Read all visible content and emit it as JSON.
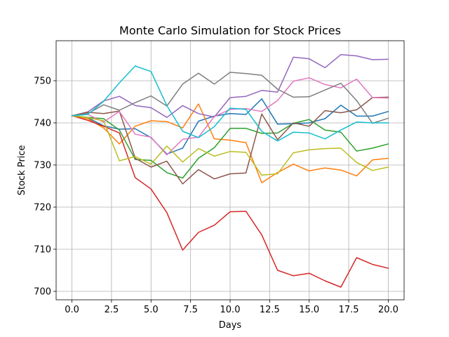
{
  "chart_data": {
    "type": "line",
    "title": "Monte Carlo Simulation for Stock Prices",
    "xlabel": "Days",
    "ylabel": "Stock Price",
    "xlim": [
      -1,
      21
    ],
    "ylim": [
      698,
      759.5
    ],
    "xticks": [
      0.0,
      2.5,
      5.0,
      7.5,
      10.0,
      12.5,
      15.0,
      17.5,
      20.0
    ],
    "xtick_labels": [
      "0.0",
      "2.5",
      "5.0",
      "7.5",
      "10.0",
      "12.5",
      "15.0",
      "17.5",
      "20.0"
    ],
    "yticks": [
      700,
      710,
      720,
      730,
      740,
      750
    ],
    "ytick_labels": [
      "700",
      "710",
      "720",
      "730",
      "740",
      "750"
    ],
    "grid": true,
    "legend": "none",
    "x": [
      0,
      1,
      2,
      3,
      4,
      5,
      6,
      7,
      8,
      9,
      10,
      11,
      12,
      13,
      14,
      15,
      16,
      17,
      18,
      19,
      20
    ],
    "series": [
      {
        "color": "#1f77b4",
        "values": [
          741.7,
          741.2,
          739.3,
          738.5,
          738.6,
          736.5,
          732.6,
          734.0,
          740.4,
          741.6,
          742.2,
          742.0,
          745.7,
          739.7,
          739.8,
          740.0,
          741.0,
          744.2,
          741.6,
          741.6,
          742.7
        ]
      },
      {
        "color": "#ff7f0e",
        "values": [
          741.7,
          741.0,
          738.8,
          735.0,
          739.2,
          740.5,
          740.3,
          738.8,
          744.5,
          736.2,
          735.9,
          735.3,
          725.8,
          728.2,
          730.2,
          728.6,
          729.3,
          728.8,
          727.4,
          731.2,
          731.6
        ]
      },
      {
        "color": "#2ca02c",
        "values": [
          741.7,
          741.3,
          741.0,
          738.3,
          731.3,
          731.1,
          728.2,
          726.9,
          731.6,
          734.1,
          738.7,
          738.7,
          737.5,
          737.6,
          739.9,
          740.8,
          738.3,
          737.8,
          733.3,
          734.0,
          735.0
        ]
      },
      {
        "color": "#d62728",
        "values": [
          741.7,
          740.6,
          739.2,
          737.6,
          727.0,
          724.3,
          718.7,
          709.8,
          714.0,
          715.7,
          718.9,
          719.0,
          713.4,
          705.0,
          703.7,
          704.3,
          702.5,
          701.0,
          708.0,
          706.4,
          705.5
        ]
      },
      {
        "color": "#9467bd",
        "values": [
          741.7,
          742.6,
          745.2,
          746.3,
          744.1,
          743.6,
          741.3,
          744.1,
          742.2,
          741.4,
          746.0,
          746.3,
          747.7,
          747.3,
          755.6,
          755.2,
          753.1,
          756.2,
          755.9,
          755.0,
          755.1
        ]
      },
      {
        "color": "#8c564b",
        "values": [
          741.7,
          742.5,
          742.2,
          742.8,
          731.6,
          729.5,
          730.9,
          725.5,
          728.9,
          726.7,
          727.9,
          728.1,
          742.1,
          736.0,
          740.0,
          739.2,
          742.9,
          742.4,
          743.1,
          746.0,
          746.1
        ]
      },
      {
        "color": "#e377c2",
        "values": [
          741.7,
          742.0,
          740.2,
          742.7,
          737.3,
          736.6,
          732.4,
          736.1,
          736.6,
          741.5,
          743.2,
          743.4,
          742.7,
          745.3,
          749.9,
          750.7,
          749.1,
          748.3,
          750.4,
          746.0,
          745.9
        ]
      },
      {
        "color": "#7f7f7f",
        "values": [
          741.7,
          742.2,
          744.3,
          743.0,
          744.8,
          746.4,
          744.0,
          749.2,
          751.8,
          749.2,
          752.0,
          751.7,
          751.3,
          748.0,
          746.1,
          746.2,
          747.8,
          749.4,
          745.3,
          739.9,
          741.1
        ]
      },
      {
        "color": "#bcbd22",
        "values": [
          741.7,
          741.2,
          740.5,
          731.0,
          732.0,
          730.2,
          734.5,
          730.7,
          733.9,
          732.1,
          733.2,
          733.0,
          727.6,
          727.9,
          732.9,
          733.6,
          733.9,
          734.0,
          730.6,
          728.7,
          729.5
        ]
      },
      {
        "color": "#17becf",
        "values": [
          741.7,
          742.0,
          745.1,
          749.5,
          753.5,
          752.2,
          744.1,
          738.0,
          736.5,
          739.1,
          743.5,
          743.2,
          738.0,
          735.7,
          737.8,
          737.6,
          736.2,
          738.3,
          740.2,
          740.0,
          740.0
        ]
      }
    ]
  }
}
